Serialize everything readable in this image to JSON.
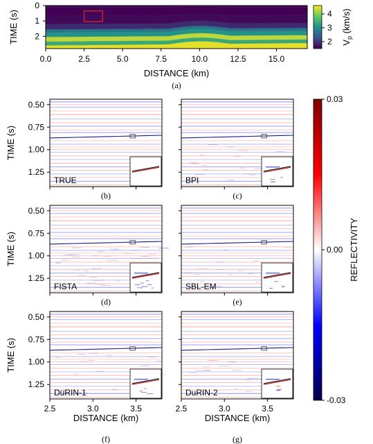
{
  "figure": {
    "top_caption": "(a)",
    "panel_captions": [
      "(b)",
      "(c)",
      "(d)",
      "(e)",
      "(f)",
      "(g)"
    ]
  },
  "chart_data": [
    {
      "type": "heatmap",
      "id": "velocity-model",
      "xlabel": "DISTANCE (km)",
      "ylabel": "TIME (s)",
      "xlim": [
        0,
        17
      ],
      "ylim": [
        2.8,
        0
      ],
      "x_ticks": [
        "0.0",
        "2.5",
        "5.0",
        "7.5",
        "10.0",
        "12.5",
        "15.0"
      ],
      "x_tick_values": [
        0,
        2.5,
        5.0,
        7.5,
        10.0,
        12.5,
        15.0
      ],
      "y_ticks": [
        "0",
        "1",
        "2"
      ],
      "y_tick_values": [
        0,
        1,
        2
      ],
      "colorbar": {
        "label": "V_p (km/s)",
        "label_main": "V",
        "label_sub": "p",
        "label_rest": " (km/s)",
        "ticks": [
          "2",
          "3",
          "4"
        ],
        "tick_values": [
          2,
          3,
          4
        ],
        "range": [
          1.5,
          4.6
        ],
        "colormap": "viridis"
      },
      "highlight_box": {
        "x": [
          2.5,
          3.7
        ],
        "t": [
          0.35,
          1.05
        ],
        "color": "#d62728"
      },
      "layers": [
        {
          "t_left": 0.15,
          "v": 1.5
        },
        {
          "t_left": 0.6,
          "v": 1.6
        },
        {
          "t_left": 1.2,
          "v": 1.9
        },
        {
          "t_left": 1.55,
          "v": 2.7
        },
        {
          "t_left": 1.75,
          "v": 3.1
        },
        {
          "t_left": 2.05,
          "v": 4.3
        },
        {
          "t_left": 2.35,
          "v": 3.4
        },
        {
          "t_left": 2.6,
          "v": 4.5
        }
      ]
    },
    {
      "type": "heatmap",
      "id": "reflectivity-panels",
      "xlabel": "DISTANCE (km)",
      "ylabel": "TIME (s)",
      "xlim": [
        2.5,
        3.8
      ],
      "ylim": [
        1.41,
        0.44
      ],
      "x_ticks": [
        "2.5",
        "3.0",
        "3.5"
      ],
      "x_tick_values": [
        2.5,
        3.0,
        3.5
      ],
      "y_ticks": [
        "0.50",
        "0.75",
        "1.00",
        "1.25"
      ],
      "y_tick_values": [
        0.5,
        0.75,
        1.0,
        1.25
      ],
      "colorbar": {
        "label": "REFLECTIVITY",
        "ticks": [
          "0.03",
          "0.00",
          "-0.03"
        ],
        "tick_values": [
          0.03,
          0.0,
          -0.03
        ],
        "range": [
          -0.03,
          0.03
        ],
        "colormap": "seismic"
      },
      "inset_box": {
        "x": [
          3.43,
          3.49
        ],
        "t": [
          0.83,
          0.87
        ]
      },
      "panels": [
        {
          "label": "TRUE",
          "caption": "(b)",
          "noise": 0
        },
        {
          "label": "BPI",
          "caption": "(c)",
          "noise": 1
        },
        {
          "label": "FISTA",
          "caption": "(d)",
          "noise": 2
        },
        {
          "label": "SBL-EM",
          "caption": "(e)",
          "noise": 1
        },
        {
          "label": "DuRIN-1",
          "caption": "(f)",
          "noise": 1
        },
        {
          "label": "DuRIN-2",
          "caption": "(g)",
          "noise": 1
        }
      ],
      "reflectors": [
        {
          "t": 0.47,
          "r": -0.02
        },
        {
          "t": 0.5,
          "r": 0.012
        },
        {
          "t": 0.53,
          "r": -0.015
        },
        {
          "t": 0.57,
          "r": 0.01
        },
        {
          "t": 0.61,
          "r": 0.016
        },
        {
          "t": 0.66,
          "r": -0.012
        },
        {
          "t": 0.7,
          "r": 0.012
        },
        {
          "t": 0.74,
          "r": -0.015
        },
        {
          "t": 0.78,
          "r": 0.01
        },
        {
          "t": 0.81,
          "r": -0.018
        },
        {
          "t": 0.855,
          "r": 0.02,
          "dip": true
        },
        {
          "t": 0.9,
          "r": 0.01
        },
        {
          "t": 0.94,
          "r": -0.014
        },
        {
          "t": 0.97,
          "r": 0.009
        },
        {
          "t": 1.0,
          "r": 0.01
        },
        {
          "t": 1.03,
          "r": -0.012
        },
        {
          "t": 1.07,
          "r": 0.012
        },
        {
          "t": 1.11,
          "r": -0.01
        },
        {
          "t": 1.15,
          "r": 0.014
        },
        {
          "t": 1.19,
          "r": -0.016
        },
        {
          "t": 1.23,
          "r": 0.012
        },
        {
          "t": 1.27,
          "r": -0.012
        },
        {
          "t": 1.31,
          "r": 0.01
        },
        {
          "t": 1.35,
          "r": -0.02
        },
        {
          "t": 1.39,
          "r": 0.012
        }
      ]
    }
  ]
}
